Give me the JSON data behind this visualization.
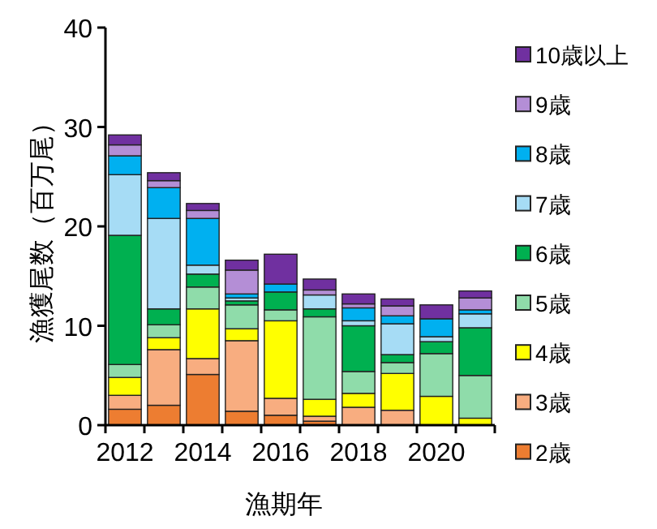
{
  "chart_data": {
    "type": "bar",
    "stacked": true,
    "xlabel": "漁期年",
    "ylabel": "漁獲尾数（百万尾）",
    "categories": [
      "2012",
      null,
      "2014",
      null,
      "2016",
      null,
      "2018",
      null,
      "2020",
      null
    ],
    "ylim": [
      0,
      40
    ],
    "yticks": [
      0,
      10,
      20,
      30,
      40
    ],
    "legend": "right",
    "series": [
      {
        "name": "2歳",
        "color": "#ed7d31",
        "values": [
          1.6,
          2.0,
          5.1,
          1.4,
          1.0,
          0.4,
          null,
          null,
          null,
          null
        ]
      },
      {
        "name": "3歳",
        "color": "#f8ad80",
        "values": [
          1.4,
          5.6,
          1.6,
          7.1,
          1.7,
          0.5,
          1.8,
          1.5,
          null,
          null
        ]
      },
      {
        "name": "4歳",
        "color": "#ffff00",
        "values": [
          1.8,
          1.2,
          5.0,
          1.2,
          7.8,
          1.7,
          1.4,
          3.7,
          2.9,
          0.7
        ]
      },
      {
        "name": "5歳",
        "color": "#8fdcaa",
        "values": [
          1.3,
          1.3,
          2.2,
          2.4,
          1.1,
          8.3,
          2.2,
          1.1,
          4.3,
          4.3
        ]
      },
      {
        "name": "6歳",
        "color": "#00b050",
        "values": [
          13.0,
          1.6,
          1.3,
          0.4,
          1.8,
          0.8,
          4.6,
          0.8,
          1.2,
          4.8
        ]
      },
      {
        "name": "7歳",
        "color": "#a6dcf5",
        "values": [
          6.1,
          9.1,
          0.9,
          0.3,
          null,
          1.4,
          0.5,
          3.1,
          0.5,
          1.4
        ]
      },
      {
        "name": "8歳",
        "color": "#00b0f0",
        "values": [
          1.9,
          3.1,
          4.7,
          0.4,
          0.8,
          null,
          1.3,
          0.8,
          1.8,
          0.4
        ]
      },
      {
        "name": "9歳",
        "color": "#b48ed6",
        "values": [
          1.1,
          0.7,
          0.8,
          2.4,
          null,
          0.5,
          0.4,
          1.0,
          null,
          1.2
        ]
      },
      {
        "name": "10歳以上",
        "color": "#7030a0",
        "values": [
          1.0,
          0.8,
          0.7,
          1.0,
          3.0,
          1.1,
          1.0,
          0.7,
          1.4,
          0.7
        ]
      }
    ]
  }
}
